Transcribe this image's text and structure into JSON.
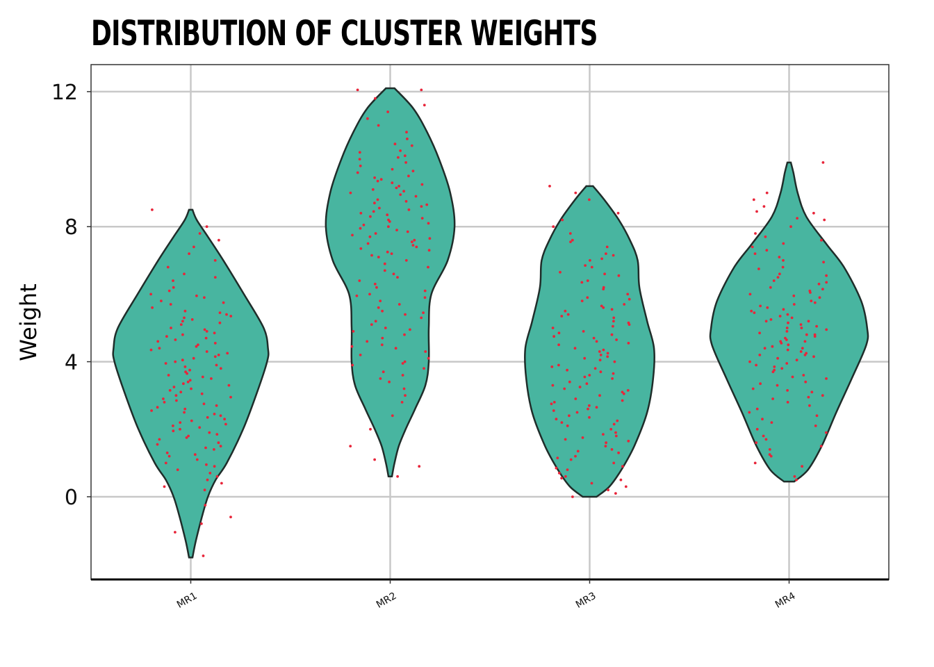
{
  "chart_data": {
    "type": "violin",
    "title": "DISTRIBUTION OF CLUSTER WEIGHTS",
    "xlabel": "",
    "ylabel": "Weight",
    "categories": [
      "MR1",
      "MR2",
      "MR3",
      "MR4"
    ],
    "ylim": [
      -2.45,
      12.8
    ],
    "yticks": [
      0,
      4,
      8,
      12
    ],
    "grid": true,
    "colors": {
      "violin_fill": "#48b5a0",
      "violin_stroke": "#1f2d2a",
      "points": "#e8253a",
      "grid": "#c8c8c8"
    },
    "violins": [
      {
        "name": "MR1",
        "min": -1.8,
        "max": 8.5,
        "profile": [
          [
            -1.8,
            0.02
          ],
          [
            -1.3,
            0.06
          ],
          [
            -0.6,
            0.13
          ],
          [
            0,
            0.2
          ],
          [
            0.5,
            0.29
          ],
          [
            1.0,
            0.42
          ],
          [
            2.0,
            0.61
          ],
          [
            3.0,
            0.76
          ],
          [
            4.0,
            0.89
          ],
          [
            4.4,
            0.9
          ],
          [
            5.0,
            0.85
          ],
          [
            6.0,
            0.62
          ],
          [
            7.0,
            0.38
          ],
          [
            7.7,
            0.2
          ],
          [
            8.2,
            0.07
          ],
          [
            8.5,
            0.02
          ]
        ]
      },
      {
        "name": "MR2",
        "min": 0.6,
        "max": 12.1,
        "profile": [
          [
            0.6,
            0.02
          ],
          [
            1.0,
            0.05
          ],
          [
            1.5,
            0.1
          ],
          [
            2.0,
            0.18
          ],
          [
            2.6,
            0.29
          ],
          [
            3.3,
            0.41
          ],
          [
            4.0,
            0.45
          ],
          [
            5.0,
            0.45
          ],
          [
            6.0,
            0.48
          ],
          [
            7.0,
            0.67
          ],
          [
            8.0,
            0.75
          ],
          [
            9.0,
            0.7
          ],
          [
            10.0,
            0.57
          ],
          [
            10.8,
            0.43
          ],
          [
            11.5,
            0.27
          ],
          [
            12.1,
            0.05
          ]
        ]
      },
      {
        "name": "MR3",
        "min": 0.0,
        "max": 9.2,
        "profile": [
          [
            0.0,
            0.08
          ],
          [
            0.3,
            0.23
          ],
          [
            0.8,
            0.37
          ],
          [
            1.5,
            0.52
          ],
          [
            2.5,
            0.67
          ],
          [
            3.5,
            0.74
          ],
          [
            4.4,
            0.75
          ],
          [
            5.2,
            0.67
          ],
          [
            6.2,
            0.58
          ],
          [
            7.0,
            0.56
          ],
          [
            7.6,
            0.47
          ],
          [
            8.2,
            0.34
          ],
          [
            8.8,
            0.17
          ],
          [
            9.2,
            0.04
          ]
        ]
      },
      {
        "name": "MR4",
        "min": 0.45,
        "max": 9.9,
        "profile": [
          [
            0.45,
            0.06
          ],
          [
            0.8,
            0.22
          ],
          [
            1.5,
            0.38
          ],
          [
            2.5,
            0.55
          ],
          [
            3.5,
            0.73
          ],
          [
            4.5,
            0.9
          ],
          [
            5.0,
            0.91
          ],
          [
            5.8,
            0.84
          ],
          [
            6.8,
            0.64
          ],
          [
            7.5,
            0.43
          ],
          [
            8.3,
            0.2
          ],
          [
            9.0,
            0.1
          ],
          [
            9.6,
            0.05
          ],
          [
            9.9,
            0.02
          ]
        ]
      }
    ],
    "points": [
      {
        "name": "MR1",
        "values": [
          -1.75,
          -1.05,
          -0.8,
          -0.6,
          -0.25,
          0.2,
          0.3,
          0.4,
          0.5,
          0.6,
          0.7,
          0.8,
          0.9,
          1.0,
          1.1,
          1.2,
          1.3,
          1.4,
          1.5,
          1.6,
          1.7,
          1.8,
          1.9,
          2.0,
          2.1,
          2.2,
          2.3,
          2.4,
          2.5,
          2.6,
          2.7,
          2.8,
          2.9,
          3.0,
          3.1,
          3.2,
          3.3,
          3.4,
          3.5,
          3.6,
          3.7,
          3.8,
          3.9,
          4.0,
          4.1,
          4.2,
          4.3,
          4.4,
          4.5,
          4.6,
          4.7,
          4.8,
          4.9,
          5.0,
          5.1,
          5.2,
          5.3,
          5.4,
          5.5,
          5.6,
          5.7,
          5.8,
          5.9,
          6.0,
          6.2,
          6.4,
          6.6,
          6.8,
          7.0,
          7.2,
          7.4,
          7.6,
          7.8,
          8.0,
          8.5,
          1.25,
          1.75,
          2.25,
          2.75,
          3.25,
          3.75,
          4.25,
          4.75,
          5.25,
          5.75,
          2.05,
          2.55,
          3.05,
          3.55,
          4.05,
          4.55,
          1.45,
          1.95,
          2.45,
          2.95,
          3.45,
          3.95,
          4.45,
          4.95,
          5.45,
          5.95,
          0.95,
          1.55,
          2.15,
          2.65,
          3.15,
          3.65,
          4.15,
          4.65,
          5.15,
          6.1,
          6.5,
          3.35,
          3.85,
          4.35,
          2.85,
          2.35,
          1.85,
          4.85,
          5.35
        ]
      },
      {
        "name": "MR2",
        "values": [
          0.6,
          0.9,
          1.1,
          1.5,
          2.0,
          2.4,
          2.8,
          3.0,
          3.2,
          3.4,
          3.6,
          3.8,
          4.0,
          4.2,
          4.4,
          4.6,
          4.8,
          5.0,
          5.2,
          5.4,
          5.6,
          5.8,
          6.0,
          6.2,
          6.4,
          6.6,
          6.8,
          7.0,
          7.2,
          7.4,
          7.6,
          7.8,
          8.0,
          8.2,
          8.4,
          8.6,
          8.8,
          9.0,
          9.2,
          9.4,
          9.6,
          9.8,
          10.0,
          10.2,
          10.4,
          10.6,
          10.8,
          11.0,
          11.2,
          11.4,
          11.6,
          11.8,
          12.05,
          12.05,
          7.1,
          7.3,
          7.5,
          7.7,
          7.9,
          8.1,
          8.3,
          8.5,
          8.7,
          8.9,
          9.1,
          9.3,
          9.5,
          9.7,
          9.9,
          10.1,
          7.15,
          7.35,
          7.55,
          7.75,
          7.95,
          8.15,
          8.35,
          8.55,
          8.75,
          8.95,
          9.15,
          9.35,
          6.9,
          6.7,
          6.5,
          6.3,
          6.1,
          5.9,
          5.7,
          5.5,
          5.3,
          5.1,
          4.9,
          4.7,
          4.5,
          4.3,
          4.1,
          3.9,
          3.7,
          3.5,
          8.05,
          8.25,
          8.45,
          8.65,
          7.85,
          7.65,
          7.45,
          7.25,
          9.05,
          9.25,
          9.45,
          9.65,
          10.05,
          10.25,
          10.45,
          5.95,
          5.45,
          4.95,
          4.45,
          3.95
        ]
      },
      {
        "name": "MR3",
        "values": [
          0.0,
          0.1,
          0.2,
          0.3,
          0.4,
          0.5,
          0.6,
          0.7,
          0.8,
          0.9,
          1.0,
          1.1,
          1.2,
          1.3,
          1.4,
          1.5,
          1.6,
          1.7,
          1.8,
          1.9,
          2.0,
          2.1,
          2.2,
          2.3,
          2.4,
          2.5,
          2.6,
          2.7,
          2.8,
          2.9,
          3.0,
          3.1,
          3.2,
          3.3,
          3.4,
          3.5,
          3.6,
          3.7,
          3.8,
          3.9,
          4.0,
          4.1,
          4.2,
          4.3,
          4.4,
          4.5,
          4.6,
          4.7,
          4.8,
          4.9,
          5.0,
          5.1,
          5.2,
          5.3,
          5.4,
          5.5,
          5.6,
          5.7,
          5.8,
          5.9,
          6.0,
          6.2,
          6.4,
          6.6,
          6.8,
          7.0,
          7.2,
          7.4,
          7.6,
          7.8,
          8.0,
          8.2,
          8.4,
          8.8,
          9.0,
          9.2,
          1.15,
          1.65,
          2.15,
          2.65,
          3.15,
          3.65,
          4.15,
          4.65,
          5.15,
          5.65,
          6.15,
          6.65,
          7.15,
          1.35,
          1.85,
          2.35,
          2.85,
          3.35,
          3.85,
          4.35,
          4.85,
          5.35,
          5.85,
          6.35,
          6.85,
          2.55,
          3.05,
          3.55,
          4.05,
          4.55,
          5.05,
          5.55,
          3.25,
          3.75,
          4.25,
          4.75,
          2.75,
          2.25,
          1.75,
          6.55,
          7.05,
          7.55,
          0.55,
          0.85
        ]
      },
      {
        "name": "MR4",
        "values": [
          0.5,
          0.6,
          0.9,
          1.0,
          1.2,
          1.4,
          1.6,
          1.8,
          2.0,
          2.2,
          2.4,
          2.6,
          2.8,
          3.0,
          3.2,
          3.4,
          3.6,
          3.8,
          4.0,
          4.2,
          4.4,
          4.6,
          4.8,
          5.0,
          5.2,
          5.4,
          5.6,
          5.8,
          6.0,
          6.2,
          6.4,
          6.6,
          6.8,
          7.0,
          7.2,
          7.4,
          7.6,
          7.8,
          8.0,
          8.2,
          8.4,
          8.6,
          8.8,
          9.0,
          9.9,
          3.1,
          3.3,
          3.5,
          3.7,
          3.9,
          4.1,
          4.3,
          4.5,
          4.7,
          4.9,
          5.1,
          5.3,
          5.5,
          5.7,
          5.9,
          6.1,
          6.3,
          6.5,
          3.15,
          3.35,
          3.55,
          3.75,
          3.95,
          4.15,
          4.35,
          4.55,
          4.75,
          4.95,
          5.15,
          5.35,
          5.55,
          5.75,
          5.95,
          6.15,
          6.35,
          6.55,
          6.75,
          4.05,
          4.25,
          4.45,
          4.65,
          4.85,
          5.05,
          5.25,
          5.45,
          5.65,
          2.1,
          2.3,
          2.5,
          2.7,
          2.9,
          1.5,
          1.7,
          1.9,
          7.1,
          7.3,
          7.5,
          7.7,
          4.6,
          4.8,
          5.0,
          5.2,
          4.4,
          4.2,
          6.95,
          6.05,
          3.85,
          2.95,
          8.45,
          8.25,
          1.25
        ]
      }
    ]
  }
}
